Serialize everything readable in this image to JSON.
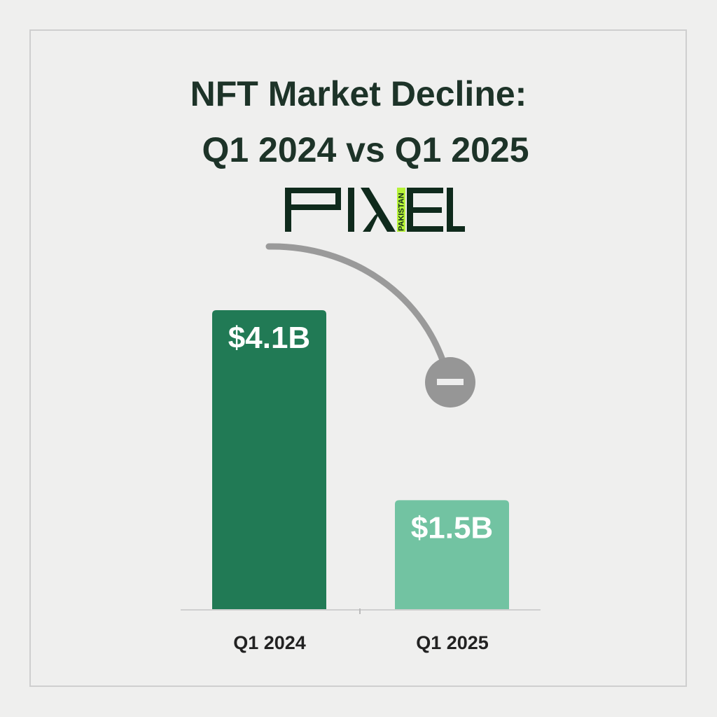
{
  "chart_data": {
    "type": "bar",
    "title": "NFT Market Decline:",
    "subtitle": "Q1 2024 vs Q1 2025",
    "categories": [
      "Q1 2024",
      "Q1 2025"
    ],
    "values": [
      4.1,
      1.5
    ],
    "data_labels": [
      "$4.1B",
      "$1.5B"
    ],
    "colors": [
      "#217a55",
      "#72c3a2"
    ],
    "xlabel": "",
    "ylabel": "",
    "ylim": [
      0,
      4.1
    ],
    "grid": false,
    "annotation": "decline-arrow-minus-icon"
  },
  "logo": {
    "text": "PIXEL",
    "inner_text": "PAKISTAN",
    "color": "#0f2a1c",
    "accent": "#b6f238"
  }
}
